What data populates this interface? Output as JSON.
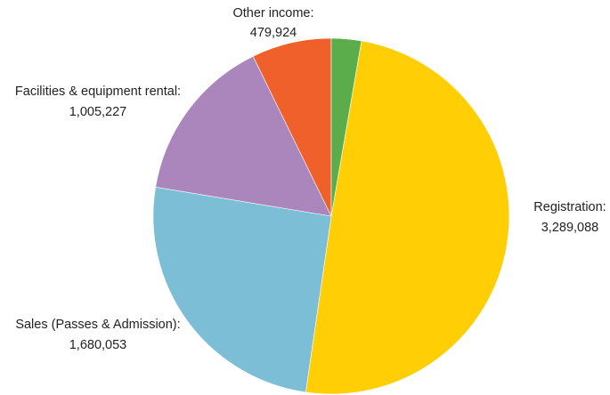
{
  "chart_data": {
    "type": "pie",
    "slices": [
      {
        "label": "Registration:",
        "value": 3289088,
        "value_text": "3,289,088",
        "color": "#FFCE04"
      },
      {
        "label": "Sales (Passes & Admission):",
        "value": 1680053,
        "value_text": "1,680,053",
        "color": "#7BBED6"
      },
      {
        "label": "Facilities & equipment rental:",
        "value": 1005227,
        "value_text": "1,005,227",
        "color": "#AB86BD"
      },
      {
        "label": "Other income:",
        "value": 479924,
        "value_text": "479,924",
        "color": "#F0602A"
      },
      {
        "label": "",
        "value": 180000,
        "value_text": "",
        "color": "#5BAD4B"
      }
    ]
  }
}
